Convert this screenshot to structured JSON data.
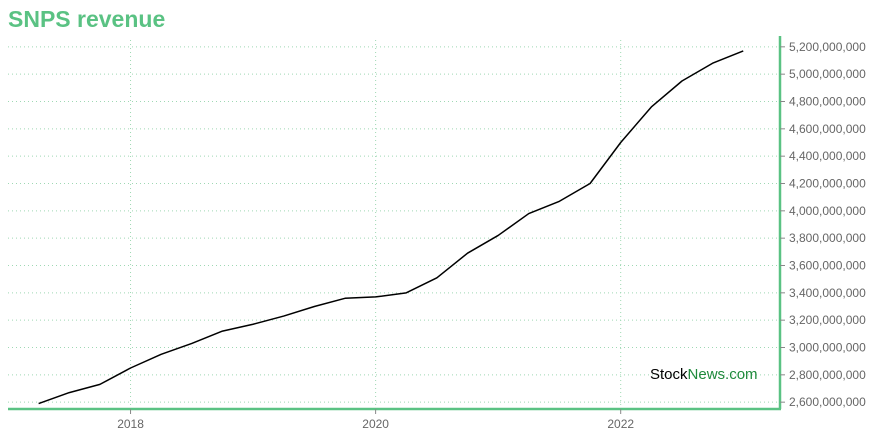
{
  "chart_data": {
    "type": "line",
    "title": "SNPS revenue",
    "xlabel": "",
    "ylabel": "",
    "x_ticks": [
      {
        "label": "2018",
        "year": 2018.0
      },
      {
        "label": "2020",
        "year": 2020.0
      },
      {
        "label": "2022",
        "year": 2022.0
      }
    ],
    "y_ticks": [
      2600000000,
      2800000000,
      3000000000,
      3200000000,
      3400000000,
      3600000000,
      3800000000,
      4000000000,
      4200000000,
      4400000000,
      4600000000,
      4800000000,
      5000000000,
      5200000000
    ],
    "y_tick_labels": [
      "2,600,000,000",
      "2,800,000,000",
      "3,000,000,000",
      "3,200,000,000",
      "3,400,000,000",
      "3,600,000,000",
      "3,800,000,000",
      "4,000,000,000",
      "4,200,000,000",
      "4,400,000,000",
      "4,600,000,000",
      "4,800,000,000",
      "5,000,000,000",
      "5,200,000,000"
    ],
    "xlim": [
      2017.0,
      2023.3
    ],
    "ylim": [
      2550000000,
      5250000000
    ],
    "grid": true,
    "series": [
      {
        "color": "#000000",
        "points": [
          {
            "x": 2017.25,
            "y": 2590000000
          },
          {
            "x": 2017.5,
            "y": 2670000000
          },
          {
            "x": 2017.75,
            "y": 2730000000
          },
          {
            "x": 2018.0,
            "y": 2850000000
          },
          {
            "x": 2018.25,
            "y": 2950000000
          },
          {
            "x": 2018.5,
            "y": 3030000000
          },
          {
            "x": 2018.75,
            "y": 3120000000
          },
          {
            "x": 2019.0,
            "y": 3170000000
          },
          {
            "x": 2019.25,
            "y": 3230000000
          },
          {
            "x": 2019.5,
            "y": 3300000000
          },
          {
            "x": 2019.75,
            "y": 3360000000
          },
          {
            "x": 2020.0,
            "y": 3370000000
          },
          {
            "x": 2020.25,
            "y": 3400000000
          },
          {
            "x": 2020.5,
            "y": 3510000000
          },
          {
            "x": 2020.75,
            "y": 3690000000
          },
          {
            "x": 2021.0,
            "y": 3820000000
          },
          {
            "x": 2021.25,
            "y": 3980000000
          },
          {
            "x": 2021.5,
            "y": 4070000000
          },
          {
            "x": 2021.75,
            "y": 4200000000
          },
          {
            "x": 2022.0,
            "y": 4500000000
          },
          {
            "x": 2022.25,
            "y": 4760000000
          },
          {
            "x": 2022.5,
            "y": 4950000000
          },
          {
            "x": 2022.75,
            "y": 5080000000
          },
          {
            "x": 2023.0,
            "y": 5170000000
          }
        ]
      }
    ],
    "colors": {
      "title": "#5ac283",
      "axis": "#5ac283",
      "grid": "#9fd8b4",
      "line": "#000000"
    }
  },
  "watermark": {
    "part1": "Stock",
    "part2": "News.com"
  }
}
